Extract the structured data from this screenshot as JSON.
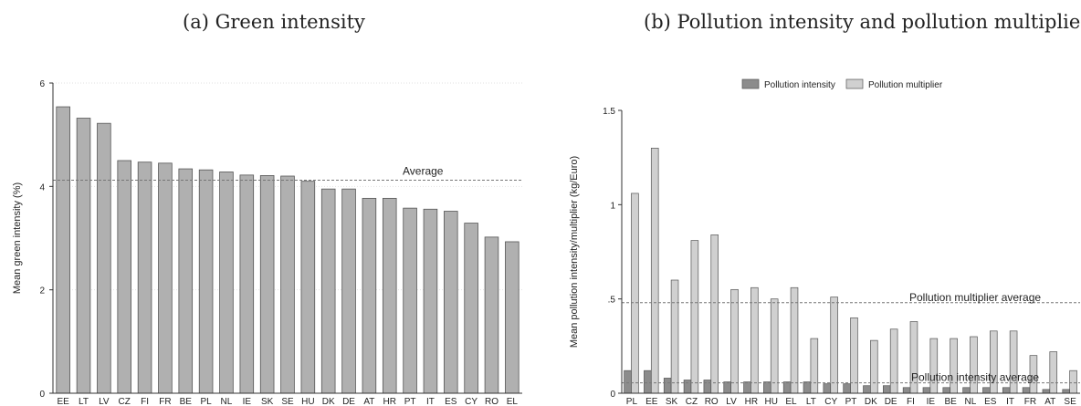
{
  "panels": {
    "a_title": "(a) Green intensity",
    "b_title": "(b) Pollution intensity and pollution multipliers"
  },
  "chart_data": [
    {
      "type": "bar",
      "title": "(a) Green intensity",
      "xlabel": "",
      "ylabel": "Mean green intensity (%)",
      "ylim": [
        0,
        6
      ],
      "yticks": [
        "0",
        "2",
        "4",
        "6"
      ],
      "ytick_values": [
        0,
        2,
        4,
        6
      ],
      "grid": true,
      "categories": [
        "EE",
        "LT",
        "LV",
        "CZ",
        "FI",
        "FR",
        "BE",
        "PL",
        "NL",
        "IE",
        "SK",
        "SE",
        "HU",
        "DK",
        "DE",
        "AT",
        "HR",
        "PT",
        "IT",
        "ES",
        "CY",
        "RO",
        "EL"
      ],
      "values": [
        5.54,
        5.32,
        5.22,
        4.5,
        4.47,
        4.45,
        4.34,
        4.32,
        4.28,
        4.22,
        4.21,
        4.2,
        4.1,
        3.95,
        3.95,
        3.77,
        3.77,
        3.58,
        3.56,
        3.52,
        3.29,
        3.02,
        2.93
      ],
      "bar_color": "#b0b0b0",
      "reference_line": {
        "label": "Average",
        "value": 4.12
      }
    },
    {
      "type": "bar",
      "title": "(b) Pollution intensity and pollution multipliers",
      "xlabel": "",
      "ylabel": "Mean pollution intensity/multiplier (kg/Euro)",
      "ylim": [
        0,
        1.5
      ],
      "yticks": [
        "0",
        ".5",
        "1",
        "1.5"
      ],
      "ytick_values": [
        0,
        0.5,
        1,
        1.5
      ],
      "grid": false,
      "legend_position": "top",
      "categories": [
        "PL",
        "EE",
        "SK",
        "CZ",
        "RO",
        "LV",
        "HR",
        "HU",
        "EL",
        "LT",
        "CY",
        "PT",
        "DK",
        "DE",
        "FI",
        "IE",
        "BE",
        "NL",
        "ES",
        "IT",
        "FR",
        "AT",
        "SE"
      ],
      "series": [
        {
          "name": "Pollution intensity",
          "color": "#8c8c8c",
          "values": [
            0.12,
            0.12,
            0.08,
            0.07,
            0.07,
            0.06,
            0.06,
            0.06,
            0.06,
            0.06,
            0.05,
            0.05,
            0.04,
            0.04,
            0.03,
            0.03,
            0.03,
            0.03,
            0.03,
            0.03,
            0.03,
            0.02,
            0.02
          ]
        },
        {
          "name": "Pollution multiplier",
          "color": "#d0d0d0",
          "values": [
            1.06,
            1.3,
            0.6,
            0.81,
            0.84,
            0.55,
            0.56,
            0.5,
            0.56,
            0.29,
            0.51,
            0.4,
            0.28,
            0.34,
            0.38,
            0.29,
            0.29,
            0.3,
            0.33,
            0.33,
            0.2,
            0.22,
            0.12
          ]
        }
      ],
      "reference_lines": [
        {
          "label": "Pollution multiplier average",
          "value": 0.48
        },
        {
          "label": "Pollution intensity average",
          "value": 0.055
        }
      ]
    }
  ]
}
